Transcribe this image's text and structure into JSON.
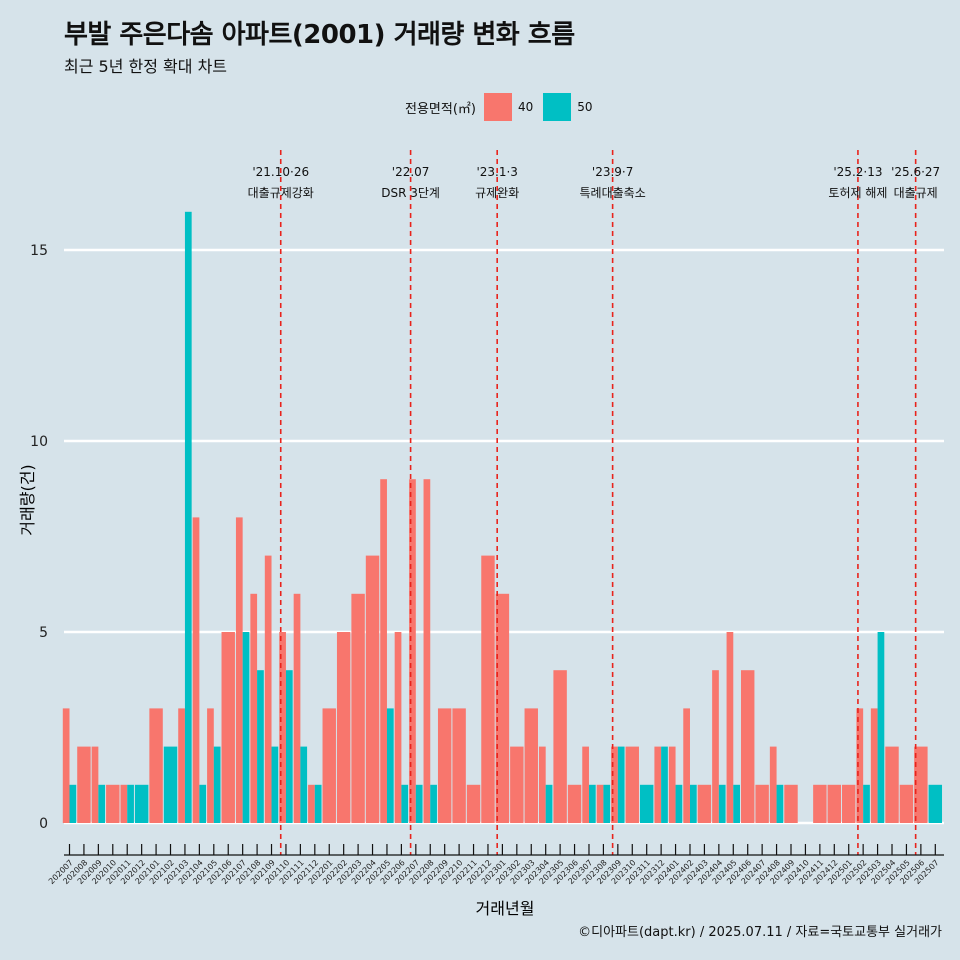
{
  "title": "부발 주은다솜 아파트(2001) 거래량 변화 흐름",
  "subtitle": "최근 5년 한정 확대 차트",
  "legend": {
    "title": "전용면적(㎡)",
    "items": [
      {
        "label": "40",
        "color": "#f8766d"
      },
      {
        "label": "50",
        "color": "#00bfc4"
      }
    ]
  },
  "caption": "©디아파트(dapt.kr) / 2025.07.11 / 자료=국토교통부 실거래가",
  "chart_data": {
    "type": "bar",
    "xlabel": "거래년월",
    "ylabel": "거래량(건)",
    "ylim": [
      0,
      16
    ],
    "yticks": [
      0,
      5,
      10,
      15
    ],
    "grid": true,
    "legend_position": "top",
    "categories": [
      "202007",
      "202008",
      "202009",
      "202010",
      "202011",
      "202012",
      "202101",
      "202102",
      "202103",
      "202104",
      "202105",
      "202106",
      "202107",
      "202108",
      "202109",
      "202110",
      "202111",
      "202112",
      "202201",
      "202202",
      "202203",
      "202204",
      "202205",
      "202206",
      "202207",
      "202208",
      "202209",
      "202210",
      "202211",
      "202212",
      "202301",
      "202302",
      "202303",
      "202304",
      "202305",
      "202306",
      "202307",
      "202308",
      "202309",
      "202310",
      "202311",
      "202312",
      "202401",
      "202402",
      "202403",
      "202404",
      "202405",
      "202406",
      "202407",
      "202408",
      "202409",
      "202410",
      "202411",
      "202412",
      "202501",
      "202502",
      "202503",
      "202504",
      "202505",
      "202506",
      "202507"
    ],
    "series": [
      {
        "name": "40",
        "color": "#f8766d",
        "values": [
          3,
          2,
          2,
          1,
          1,
          0,
          3,
          0,
          3,
          8,
          3,
          5,
          8,
          6,
          7,
          5,
          6,
          1,
          3,
          5,
          6,
          7,
          9,
          5,
          9,
          9,
          3,
          3,
          1,
          7,
          6,
          2,
          3,
          2,
          4,
          1,
          2,
          1,
          2,
          2,
          0,
          2,
          2,
          3,
          1,
          4,
          5,
          4,
          1,
          2,
          1,
          0,
          1,
          1,
          1,
          3,
          3,
          2,
          1,
          2,
          0
        ]
      },
      {
        "name": "50",
        "color": "#00bfc4",
        "values": [
          1,
          0,
          1,
          0,
          1,
          1,
          0,
          2,
          16,
          1,
          2,
          0,
          5,
          4,
          2,
          4,
          2,
          1,
          0,
          0,
          0,
          0,
          3,
          1,
          1,
          1,
          0,
          0,
          0,
          0,
          0,
          0,
          0,
          1,
          0,
          0,
          1,
          1,
          2,
          0,
          1,
          2,
          1,
          1,
          0,
          1,
          1,
          0,
          0,
          1,
          0,
          0,
          0,
          0,
          0,
          1,
          5,
          0,
          0,
          0,
          1
        ]
      }
    ],
    "annotations": [
      {
        "date": "'21.10·26",
        "label": "대출규제강화",
        "x": "202110"
      },
      {
        "date": "'22.07",
        "label": "DSR 3단계",
        "x": "202207"
      },
      {
        "date": "'23.1·3",
        "label": "규제완화",
        "x": "202301"
      },
      {
        "date": "'23.9·7",
        "label": "특례대출축소",
        "x": "202309"
      },
      {
        "date": "'25.2·13",
        "label": "토허제 해제",
        "x": "202502"
      },
      {
        "date": "'25.6·27",
        "label": "대출규제",
        "x": "202506"
      }
    ]
  }
}
